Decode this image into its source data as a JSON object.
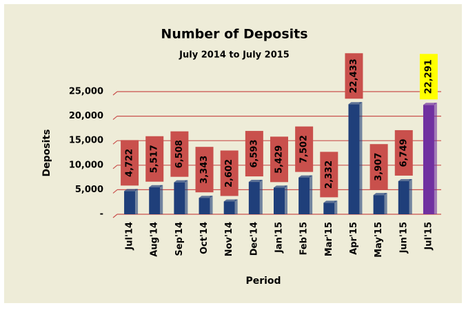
{
  "chart_data": {
    "type": "bar",
    "title": "Number of Deposits",
    "subtitle": "July 2014 to July 2015",
    "x_label": "Period",
    "y_label": "Deposits",
    "categories": [
      "Jul'14",
      "Aug'14",
      "Sep'14",
      "Oct'14",
      "Nov'14",
      "Dec'14",
      "Jan'15",
      "Feb'15",
      "Mar'15",
      "Apr'15",
      "May'15",
      "Jun'15",
      "Jul'15"
    ],
    "values": [
      4722,
      5517,
      6508,
      3343,
      2602,
      6593,
      5429,
      7502,
      2332,
      22433,
      3907,
      6749,
      22291
    ],
    "value_labels": [
      "4,722",
      "5,517",
      "6,508",
      "3,343",
      "2,602",
      "6,593",
      "5,429",
      "7,502",
      "2,332",
      "22,433",
      "3,907",
      "6,749",
      "22,291"
    ],
    "colors": [
      "#1f3f7a",
      "#1f3f7a",
      "#1f3f7a",
      "#1f3f7a",
      "#1f3f7a",
      "#1f3f7a",
      "#1f3f7a",
      "#1f3f7a",
      "#1f3f7a",
      "#1f3f7a",
      "#1f3f7a",
      "#1f3f7a",
      "#7030a0"
    ],
    "label_colors": [
      "#c9504c",
      "#c9504c",
      "#c9504c",
      "#c9504c",
      "#c9504c",
      "#c9504c",
      "#c9504c",
      "#c9504c",
      "#c9504c",
      "#c9504c",
      "#c9504c",
      "#c9504c",
      "#ffff00"
    ],
    "ylim": [
      0,
      25000
    ],
    "yticks": [
      {
        "value": 0,
        "label": "-"
      },
      {
        "value": 5000,
        "label": "5,000"
      },
      {
        "value": 10000,
        "label": "10,000"
      },
      {
        "value": 15000,
        "label": "15,000"
      },
      {
        "value": 20000,
        "label": "20,000"
      },
      {
        "value": 25000,
        "label": "25,000"
      }
    ],
    "grid": true,
    "grid_color": "#c9504c"
  }
}
